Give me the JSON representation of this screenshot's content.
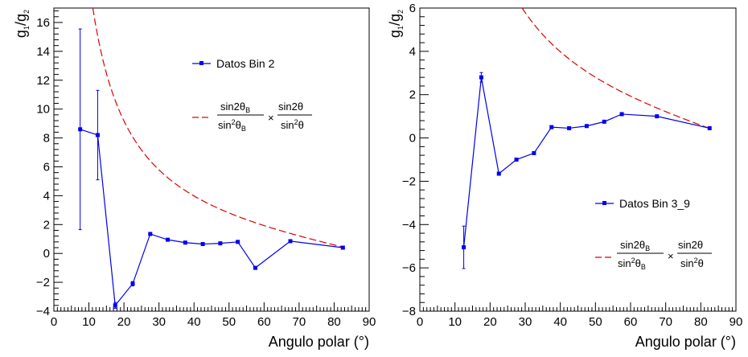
{
  "chart_data": [
    {
      "type": "line",
      "xlabel": "Angulo polar (°)",
      "ylabel_main": "g",
      "ylabel_sub1": "1",
      "ylabel_slash": "/g",
      "ylabel_sub2": "2",
      "xlim": [
        0,
        90
      ],
      "ylim": [
        -4,
        17
      ],
      "xticks": [
        0,
        10,
        20,
        30,
        40,
        50,
        60,
        70,
        80,
        90
      ],
      "yticks": [
        -4,
        -2,
        0,
        2,
        4,
        6,
        8,
        10,
        12,
        14,
        16
      ],
      "xtick_labels": [
        "0",
        "10",
        "20",
        "30",
        "40",
        "50",
        "60",
        "70",
        "80",
        "90"
      ],
      "ytick_labels": [
        "−4",
        "−2",
        "0",
        "2",
        "4",
        "6",
        "8",
        "10",
        "12",
        "14",
        "16"
      ],
      "series": [
        {
          "name": "Datos Bin 2",
          "color": "#0000ee",
          "x": [
            7.5,
            12.5,
            17.5,
            22.5,
            27.5,
            32.5,
            37.5,
            42.5,
            47.5,
            52.5,
            57.5,
            67.5,
            82.5
          ],
          "y": [
            8.6,
            8.2,
            -3.6,
            -2.1,
            1.35,
            0.95,
            0.75,
            0.65,
            0.7,
            0.8,
            -1.0,
            0.85,
            0.4
          ],
          "err": [
            6.95,
            3.1,
            0.2,
            0.15,
            0.1,
            0.08,
            0.06,
            0.06,
            0.06,
            0.06,
            0.08,
            0.06,
            0.05
          ]
        },
        {
          "name": "theory",
          "color": "#dd0000",
          "theta_b_deg": 82.5,
          "y_at_theta_b": 0.44
        }
      ],
      "legend": {
        "data_label": "Datos Bin 2",
        "frac1_num_a": "sin2θ",
        "frac1_num_sub": "B",
        "frac1_den_a": "sin",
        "frac1_den_sup": "2",
        "frac1_den_b": "θ",
        "frac1_den_sub": "B",
        "times": "×",
        "frac2_num": "sin2θ",
        "frac2_den_a": "sin",
        "frac2_den_sup": "2",
        "frac2_den_b": "θ"
      }
    },
    {
      "type": "line",
      "xlabel": "Angulo polar (°)",
      "ylabel_main": "g",
      "ylabel_sub1": "1",
      "ylabel_slash": "/g",
      "ylabel_sub2": "2",
      "xlim": [
        0,
        90
      ],
      "ylim": [
        -8,
        6
      ],
      "xticks": [
        0,
        10,
        20,
        30,
        40,
        50,
        60,
        70,
        80,
        90
      ],
      "yticks": [
        -8,
        -6,
        -4,
        -2,
        0,
        2,
        4,
        6
      ],
      "xtick_labels": [
        "0",
        "10",
        "20",
        "30",
        "40",
        "50",
        "60",
        "70",
        "80",
        "90"
      ],
      "ytick_labels": [
        "−8",
        "−6",
        "−4",
        "−2",
        "0",
        "2",
        "4",
        "6"
      ],
      "series": [
        {
          "name": "Datos Bin 3_9",
          "color": "#0000ee",
          "x": [
            12.5,
            17.5,
            22.5,
            27.5,
            32.5,
            37.5,
            42.5,
            47.5,
            52.5,
            57.5,
            67.5,
            82.5
          ],
          "y": [
            -5.05,
            2.8,
            -1.65,
            -1.0,
            -0.7,
            0.5,
            0.45,
            0.55,
            0.75,
            1.1,
            1.0,
            0.45
          ],
          "err": [
            0.98,
            0.22,
            0.06,
            0.05,
            0.05,
            0.04,
            0.04,
            0.04,
            0.04,
            0.04,
            0.04,
            0.04
          ]
        },
        {
          "name": "theory",
          "color": "#dd0000",
          "theta_b_deg": 82.5,
          "y_at_theta_b": 0.44
        }
      ],
      "legend": {
        "data_label": "Datos Bin 3_9",
        "frac1_num_a": "sin2θ",
        "frac1_num_sub": "B",
        "frac1_den_a": "sin",
        "frac1_den_sup": "2",
        "frac1_den_b": "θ",
        "frac1_den_sub": "B",
        "times": "×",
        "frac2_num": "sin2θ",
        "frac2_den_a": "sin",
        "frac2_den_sup": "2",
        "frac2_den_b": "θ"
      }
    }
  ]
}
